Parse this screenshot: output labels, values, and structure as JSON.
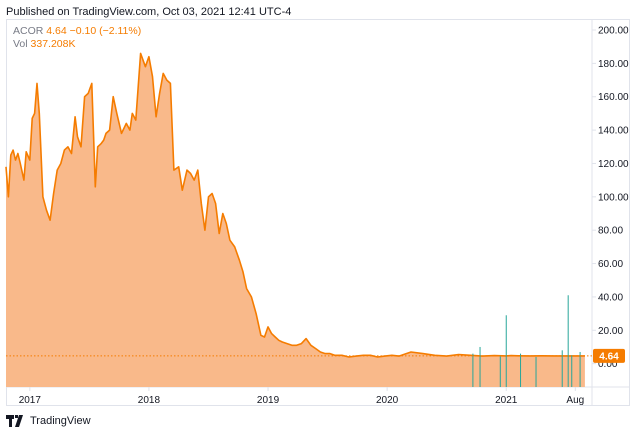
{
  "header": {
    "published": "Published on TradingView.com, Oct 03, 2021 12:41 UTC-4"
  },
  "legend": {
    "symbol": "ACOR",
    "price": "4.64",
    "change": "−0.10 (−2.11%)",
    "vol_label": "Vol",
    "vol_value": "337.208K"
  },
  "last_price_label": "4.64",
  "footer": {
    "brand": "TradingView"
  },
  "colors": {
    "line": "#f57c00",
    "area": "#f9b98a",
    "volume": "#26a69a",
    "axis_text": "#131722",
    "grid": "#e0e3eb"
  },
  "icons": {
    "logo": "tradingview-logo-icon"
  },
  "chart_data": {
    "type": "area",
    "title": "ACOR",
    "x_tick_labels": [
      "2017",
      "2018",
      "2019",
      "2020",
      "2021",
      "Aug"
    ],
    "y_tick_labels": [
      "0.00",
      "20.00",
      "40.00",
      "60.00",
      "80.00",
      "100.00",
      "120.00",
      "140.00",
      "160.00",
      "180.00",
      "200.00"
    ],
    "ylim": [
      -14,
      206
    ],
    "xlim": [
      2016.8,
      2021.72
    ],
    "grid": false,
    "last_value": 4.64,
    "series": [
      {
        "name": "ACOR",
        "x": [
          2016.8,
          2016.82,
          2016.84,
          2016.86,
          2016.88,
          2016.9,
          2016.92,
          2016.95,
          2016.97,
          2017.0,
          2017.02,
          2017.04,
          2017.06,
          2017.08,
          2017.11,
          2017.14,
          2017.17,
          2017.2,
          2017.23,
          2017.26,
          2017.29,
          2017.32,
          2017.35,
          2017.38,
          2017.4,
          2017.43,
          2017.46,
          2017.49,
          2017.52,
          2017.55,
          2017.57,
          2017.6,
          2017.62,
          2017.64,
          2017.67,
          2017.7,
          2017.73,
          2017.77,
          2017.81,
          2017.84,
          2017.86,
          2017.89,
          2017.93,
          2017.97,
          2018.0,
          2018.03,
          2018.06,
          2018.09,
          2018.12,
          2018.15,
          2018.18,
          2018.21,
          2018.25,
          2018.28,
          2018.32,
          2018.35,
          2018.38,
          2018.41,
          2018.44,
          2018.47,
          2018.5,
          2018.53,
          2018.56,
          2018.59,
          2018.62,
          2018.65,
          2018.68,
          2018.72,
          2018.76,
          2018.79,
          2018.82,
          2018.86,
          2018.9,
          2018.94,
          2018.97,
          2019.0,
          2019.03,
          2019.06,
          2019.09,
          2019.12,
          2019.16,
          2019.2,
          2019.24,
          2019.28,
          2019.32,
          2019.36,
          2019.4,
          2019.44,
          2019.48,
          2019.52,
          2019.56,
          2019.62,
          2019.68,
          2019.74,
          2019.8,
          2019.86,
          2019.92,
          2019.98,
          2020.04,
          2020.1,
          2020.2,
          2020.3,
          2020.4,
          2020.5,
          2020.6,
          2020.7,
          2020.8,
          2020.9,
          2021.0,
          2021.04,
          2021.1,
          2021.2,
          2021.3,
          2021.4,
          2021.5,
          2021.6,
          2021.66
        ],
        "values": [
          118,
          100,
          125,
          128,
          122,
          126,
          120,
          110,
          127,
          122,
          147,
          150,
          168,
          150,
          100,
          92,
          86,
          102,
          116,
          120,
          128,
          130,
          126,
          148,
          136,
          130,
          160,
          162,
          168,
          106,
          130,
          132,
          134,
          138,
          140,
          160,
          150,
          138,
          144,
          140,
          150,
          146,
          186,
          178,
          184,
          172,
          148,
          162,
          174,
          170,
          168,
          116,
          118,
          104,
          116,
          114,
          110,
          116,
          96,
          80,
          100,
          102,
          96,
          78,
          90,
          84,
          74,
          70,
          62,
          55,
          45,
          40,
          30,
          17,
          16,
          22,
          18,
          16,
          14,
          13,
          12,
          11,
          11,
          12,
          15,
          11,
          9,
          7,
          6,
          6,
          5,
          5,
          4,
          4.5,
          5,
          5,
          4,
          4.5,
          5,
          4.5,
          7,
          6,
          5,
          4.5,
          5.5,
          5,
          4.5,
          4.8,
          4.64,
          4.8,
          4.7,
          4.64,
          4.7,
          4.64,
          4.64,
          4.64,
          4.64
        ]
      },
      {
        "name": "Vol",
        "x": [
          2020.72,
          2020.78,
          2020.95,
          2021.0,
          2021.12,
          2021.25,
          2021.47,
          2021.52,
          2021.55,
          2021.62
        ],
        "values": [
          6,
          10,
          5,
          29,
          6,
          4,
          8,
          41,
          5,
          7
        ]
      }
    ]
  }
}
